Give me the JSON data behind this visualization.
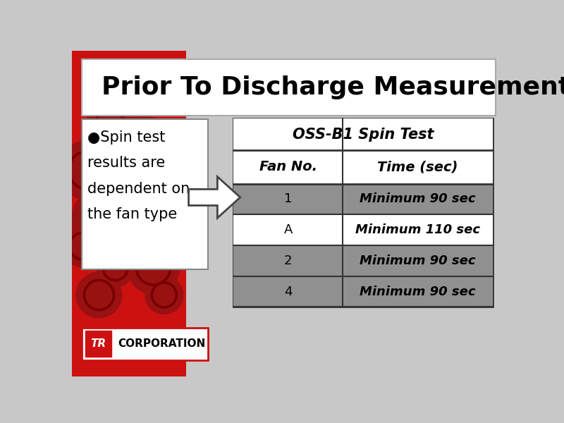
{
  "title": "Prior To Discharge Measurements",
  "bullet_text": [
    "●Spin test",
    "results are",
    "dependent on",
    "the fan type"
  ],
  "table_title": "OSS-B1 Spin Test",
  "col_headers": [
    "Fan No.",
    "Time (sec)"
  ],
  "rows": [
    [
      "1",
      "Minimum 90 sec"
    ],
    [
      "A",
      "Minimum 110 sec"
    ],
    [
      "2",
      "Minimum 90 sec"
    ],
    [
      "4",
      "Minimum 90 sec"
    ]
  ],
  "row_shading": [
    "gray",
    "white",
    "gray",
    "gray"
  ],
  "bg_color": "#c8c8c8",
  "title_bg": "#ffffff",
  "gray_row_color": "#909090",
  "white_row_color": "#ffffff",
  "text_dark": "#000000",
  "left_panel_bg": "#ffffff",
  "red_strip_color": "#cc1111",
  "red_dark": "#991111",
  "red_darker": "#770000"
}
